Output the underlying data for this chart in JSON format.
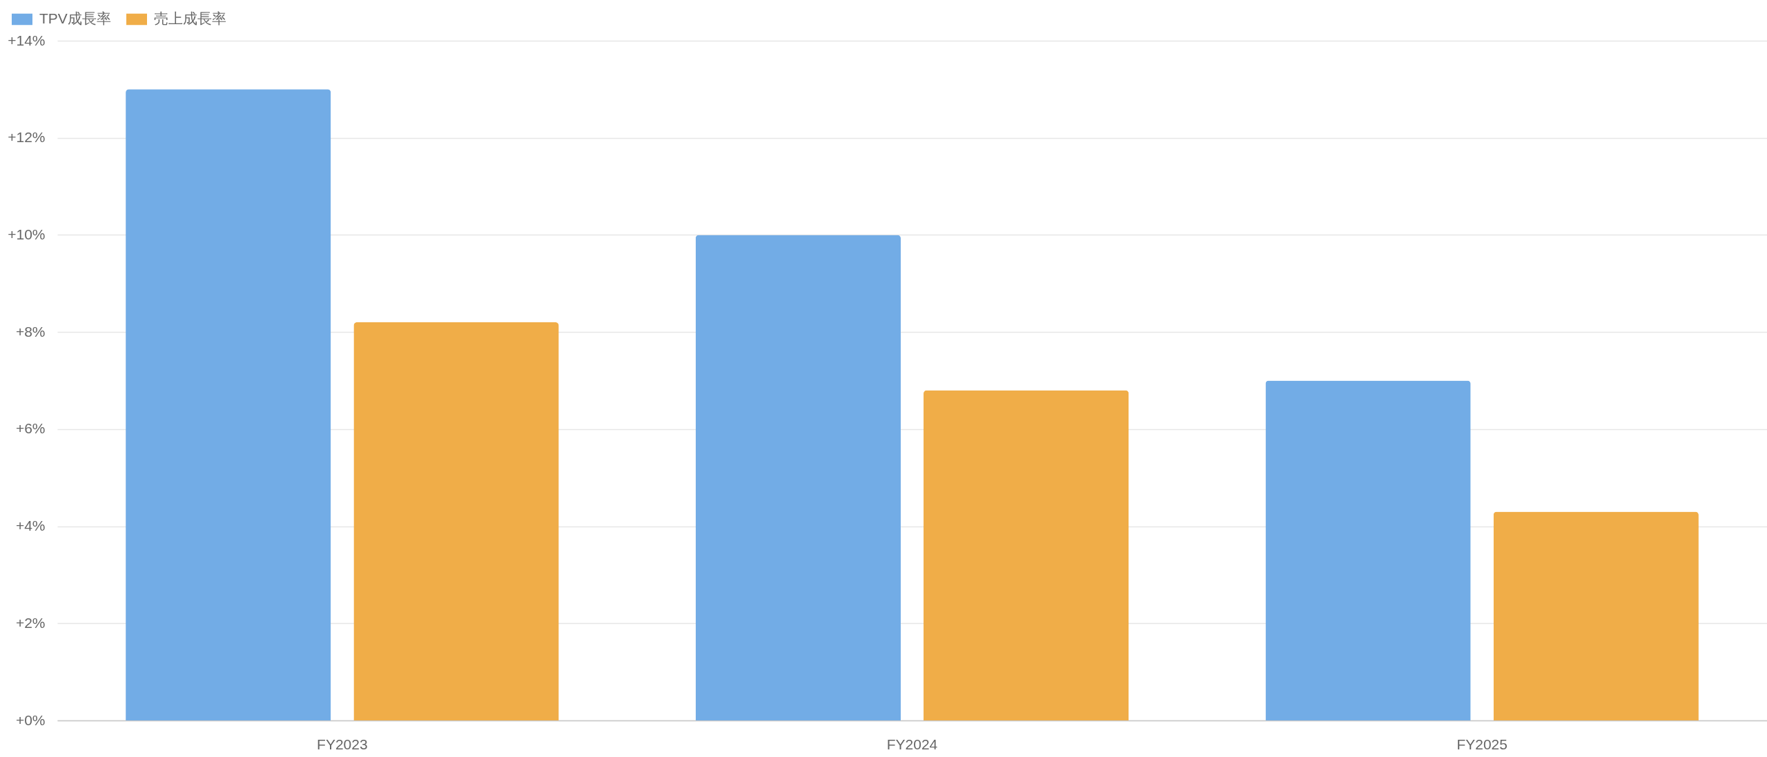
{
  "chart_data": {
    "type": "bar",
    "categories": [
      "FY2023",
      "FY2024",
      "FY2025"
    ],
    "series": [
      {
        "name": "TPV成長率",
        "color": "#72ace6",
        "values": [
          13,
          10,
          7
        ]
      },
      {
        "name": "売上成長率",
        "color": "#f0ad48",
        "values": [
          8.2,
          6.8,
          4.3
        ]
      }
    ],
    "ylim": [
      0,
      14
    ],
    "yticks": [
      {
        "value": 0,
        "label": "+0%"
      },
      {
        "value": 2,
        "label": "+2%"
      },
      {
        "value": 4,
        "label": "+4%"
      },
      {
        "value": 6,
        "label": "+6%"
      },
      {
        "value": 8,
        "label": "+8%"
      },
      {
        "value": 10,
        "label": "+10%"
      },
      {
        "value": 12,
        "label": "+12%"
      },
      {
        "value": 14,
        "label": "+14%"
      }
    ],
    "grid": "y",
    "legend": "top left"
  }
}
